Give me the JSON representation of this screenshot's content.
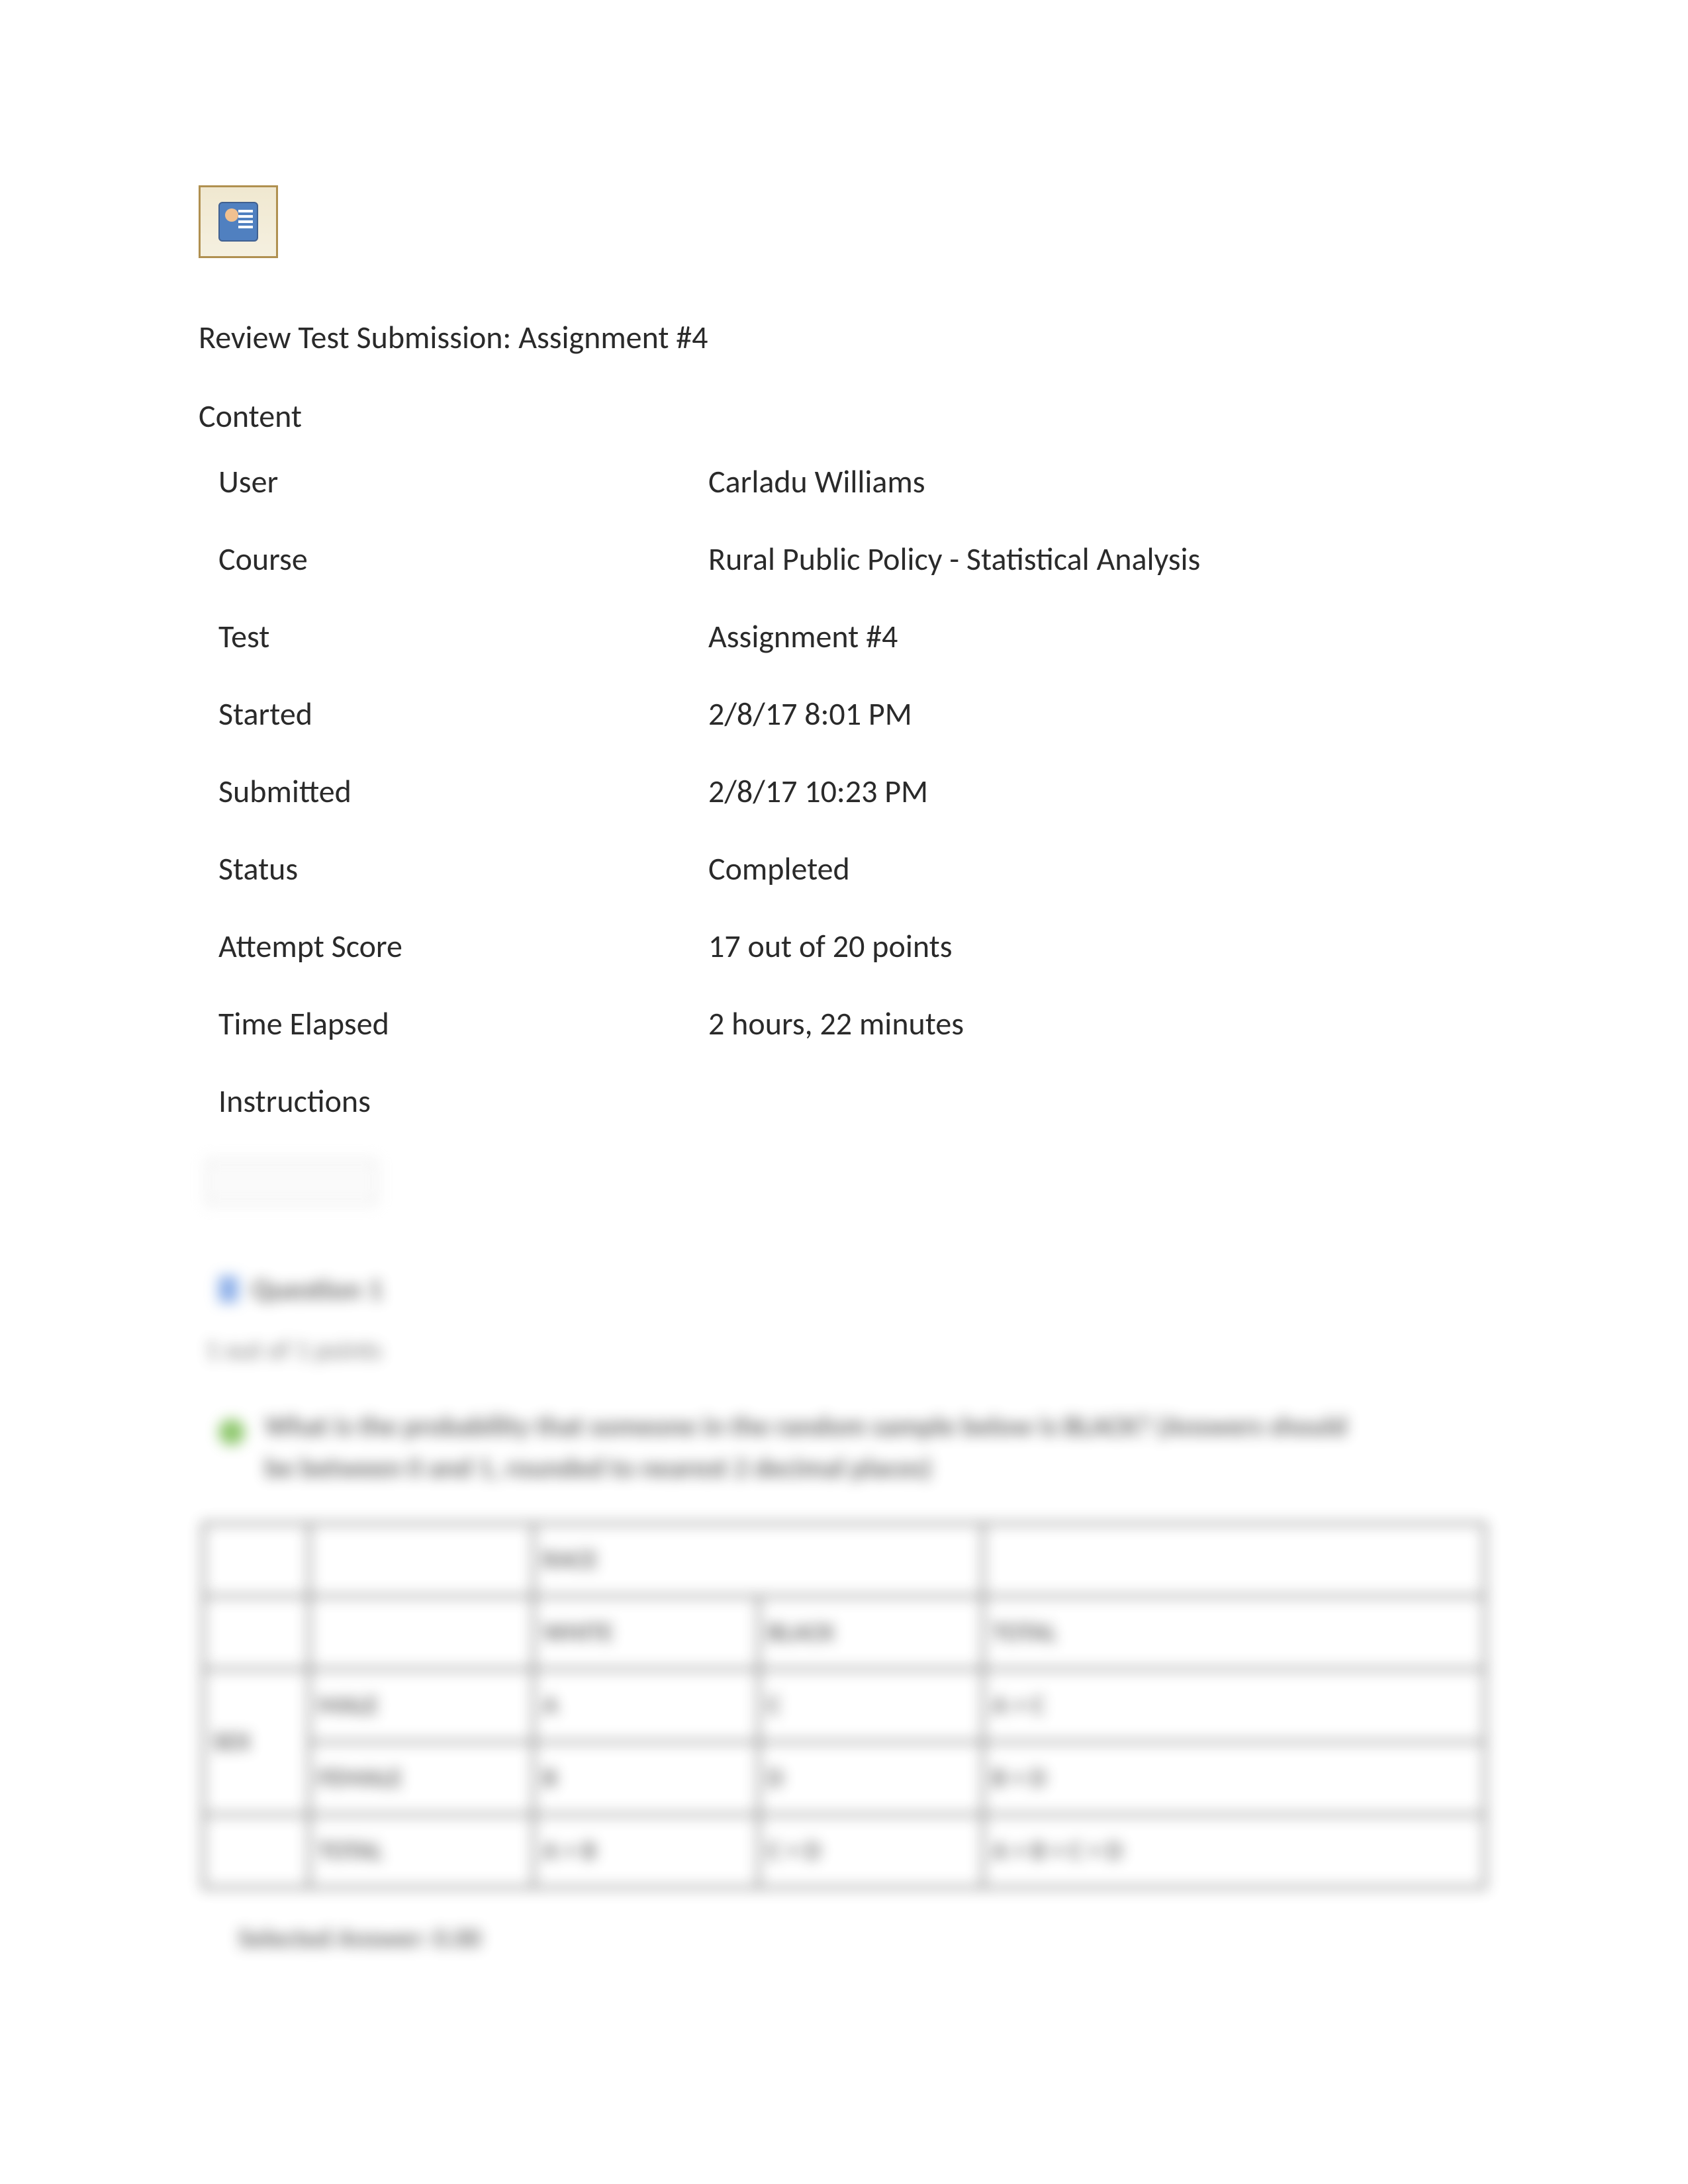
{
  "page": {
    "title": "Review Test Submission: Assignment #4",
    "contentLabel": "Content"
  },
  "info": [
    {
      "key": "User",
      "value": "Carladu Williams"
    },
    {
      "key": "Course",
      "value": "Rural Public Policy - Statistical Analysis"
    },
    {
      "key": "Test",
      "value": "Assignment #4"
    },
    {
      "key": "Started",
      "value": "2/8/17 8:01 PM"
    },
    {
      "key": "Submitted",
      "value": "2/8/17 10:23 PM"
    },
    {
      "key": "Status",
      "value": "Completed"
    },
    {
      "key": "Attempt Score",
      "value": "17 out of 20 points"
    },
    {
      "key": "Time Elapsed",
      "value": "2 hours, 22 minutes"
    },
    {
      "key": "Instructions",
      "value": ""
    }
  ],
  "blurred": {
    "button": " ",
    "questionLabel": "Question 1",
    "points": "1 out of 1 points",
    "bodyLine1": "What is the probability that someone in the random sample below is BLACK? (Answers should",
    "bodyLine2": "be between 0 and 1, rounded to nearest 2 decimal places)",
    "tableHeaders": {
      "race": "RACE",
      "white": "WHITE",
      "black": "BLACK",
      "total": "TOTAL",
      "sex": "SEX",
      "male": "MALE",
      "female": "FEMALE"
    },
    "tableValues": {
      "r1c1": "A",
      "r1c2": "C",
      "r1c3": "A + C",
      "r2c1": "B",
      "r2c2": "D",
      "r2c3": "B + D",
      "r3c1": "A + B",
      "r3c2": "C + D",
      "r3c3": "A + B + C + D"
    },
    "answerLabel": "Selected Answer:   0.00"
  },
  "colors": {
    "text": "#2a2a2a",
    "background": "#ffffff",
    "iconBorder": "#b09050",
    "iconInner": "#5080c0",
    "green": "#5fb030",
    "blue": "#6090e0",
    "tableBorder": "#333333"
  }
}
